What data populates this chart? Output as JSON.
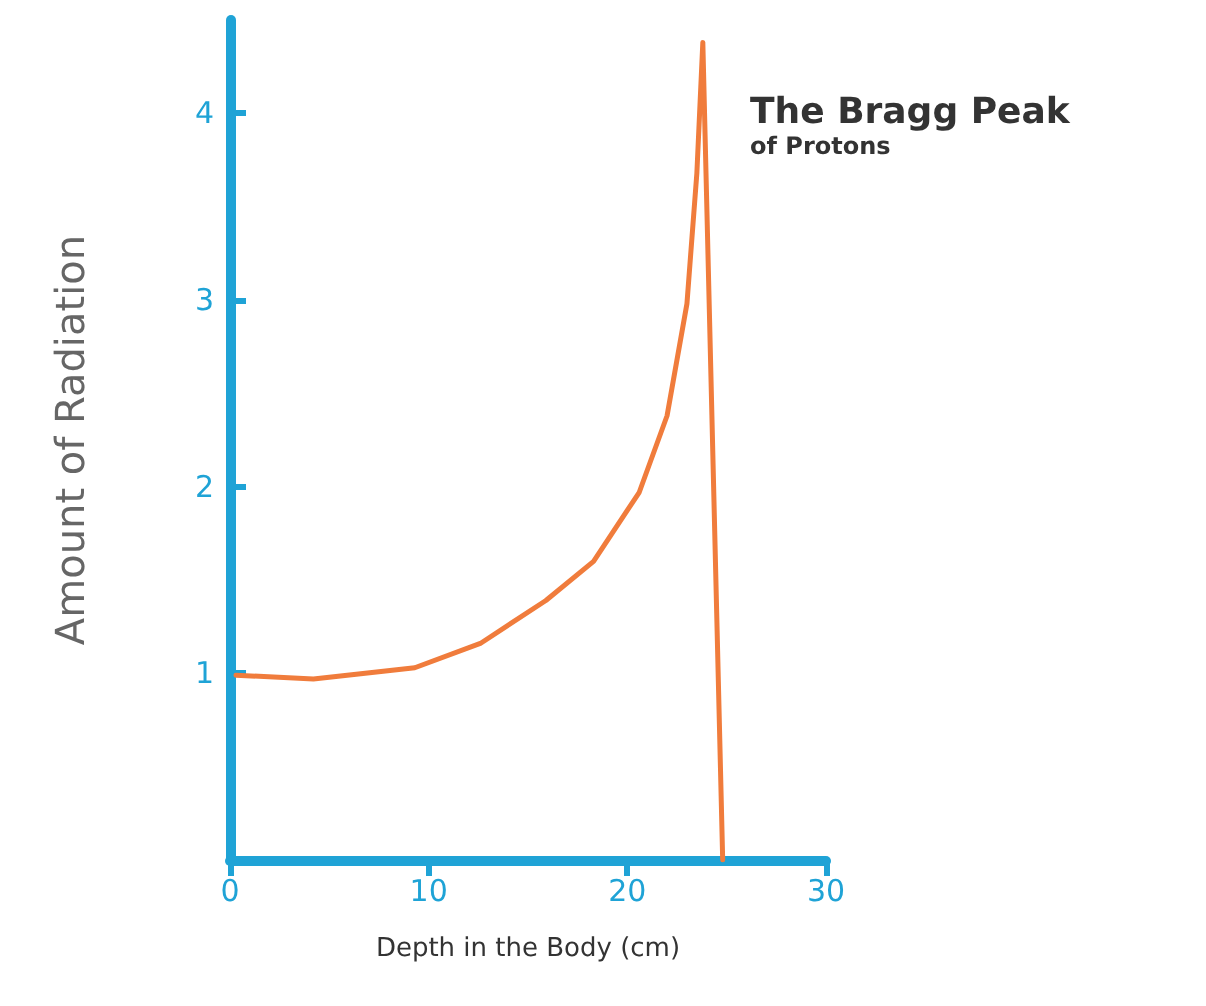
{
  "chart_data": {
    "type": "line",
    "title": "The Bragg Peak",
    "subtitle": "of Protons",
    "xlabel": "Depth in the Body (cm)",
    "ylabel": "Amount of Radiation",
    "x": [
      0.3,
      4.2,
      9.3,
      12.6,
      15.9,
      18.3,
      20.6,
      22.0,
      23.0,
      23.5,
      23.8,
      24.8
    ],
    "series": [
      {
        "color": "#f07c3c",
        "values": [
          0.99,
          0.97,
          1.03,
          1.16,
          1.39,
          1.6,
          1.97,
          2.38,
          2.98,
          3.68,
          4.38,
          0
        ]
      }
    ],
    "xlim": [
      0,
      30
    ],
    "xticks": [
      0,
      10,
      20,
      30
    ],
    "ylim": [
      0,
      4.5
    ],
    "yticks": [
      1,
      2,
      3,
      4
    ],
    "grid": false,
    "marker": "none",
    "line_style": "solid"
  }
}
